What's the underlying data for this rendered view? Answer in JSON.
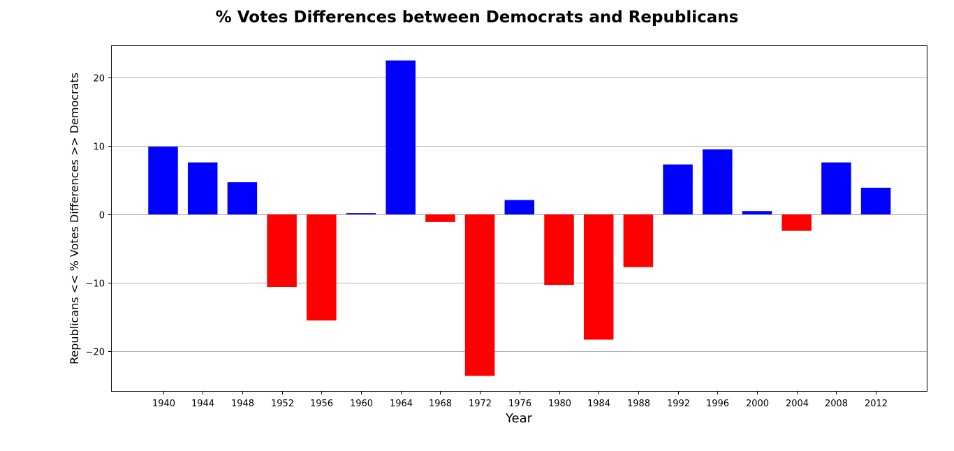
{
  "chart_data": {
    "type": "bar",
    "title": "% Votes Differences between Democrats and Republicans",
    "xlabel": "Year",
    "ylabel": "Republicans  << % Votes Differences >>  Democrats",
    "categories": [
      "1940",
      "1944",
      "1948",
      "1952",
      "1956",
      "1960",
      "1964",
      "1968",
      "1972",
      "1976",
      "1980",
      "1984",
      "1988",
      "1992",
      "1996",
      "2000",
      "2004",
      "2008",
      "2012"
    ],
    "values": [
      9.9,
      7.6,
      4.7,
      -10.6,
      -15.5,
      0.2,
      22.5,
      -1.1,
      -23.6,
      2.1,
      -10.3,
      -18.3,
      -7.7,
      7.3,
      9.5,
      0.5,
      -2.4,
      7.6,
      3.9
    ],
    "ylim": [
      -25.8,
      24.6
    ],
    "yticks": [
      -20,
      -10,
      0,
      10,
      20
    ],
    "grid": "y",
    "legend": "none",
    "colors": {
      "positive": "#0000ff",
      "negative": "#ff0000",
      "grid": "#b0b0b0",
      "axes": "#000000"
    }
  }
}
